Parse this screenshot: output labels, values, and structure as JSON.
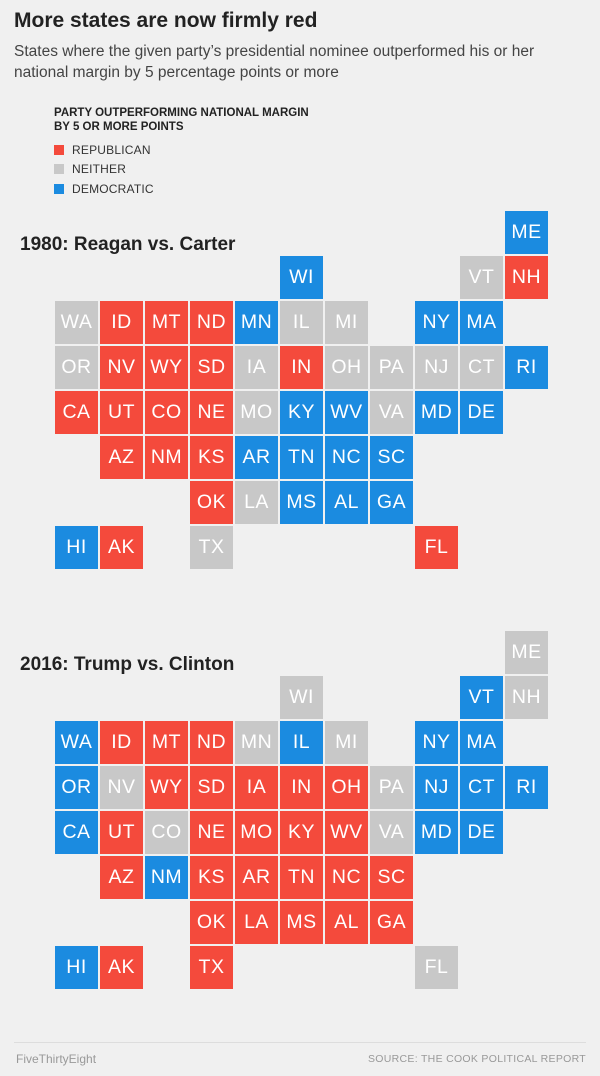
{
  "title": "More states are now firmly red",
  "subtitle": "States where the given party’s presidential nominee outperformed his or her national margin by 5 percentage points or more",
  "legend": {
    "title": "PARTY OUTPERFORMING NATIONAL MARGIN BY 5 OR MORE POINTS",
    "items": [
      {
        "label": "REPUBLICAN",
        "color": "#f44a3c"
      },
      {
        "label": "NEITHER",
        "color": "#c8c8c8"
      },
      {
        "label": "DEMOCRATIC",
        "color": "#1b8be0"
      }
    ]
  },
  "colors": {
    "R": "#f44a3c",
    "N": "#c8c8c8",
    "D": "#1b8be0"
  },
  "footer": {
    "brand": "FiveThirtyEight",
    "source": "SOURCE: THE COOK POLITICAL REPORT"
  },
  "chart_data": [
    {
      "type": "tile-map",
      "title": "1980: Reagan vs. Carter",
      "states": [
        {
          "state": "ME",
          "col": 10,
          "row": 0,
          "party": "D"
        },
        {
          "state": "WI",
          "col": 5,
          "row": 1,
          "party": "D"
        },
        {
          "state": "VT",
          "col": 9,
          "row": 1,
          "party": "N"
        },
        {
          "state": "NH",
          "col": 10,
          "row": 1,
          "party": "R"
        },
        {
          "state": "WA",
          "col": 0,
          "row": 2,
          "party": "N"
        },
        {
          "state": "ID",
          "col": 1,
          "row": 2,
          "party": "R"
        },
        {
          "state": "MT",
          "col": 2,
          "row": 2,
          "party": "R"
        },
        {
          "state": "ND",
          "col": 3,
          "row": 2,
          "party": "R"
        },
        {
          "state": "MN",
          "col": 4,
          "row": 2,
          "party": "D"
        },
        {
          "state": "IL",
          "col": 5,
          "row": 2,
          "party": "N"
        },
        {
          "state": "MI",
          "col": 6,
          "row": 2,
          "party": "N"
        },
        {
          "state": "NY",
          "col": 8,
          "row": 2,
          "party": "D"
        },
        {
          "state": "MA",
          "col": 9,
          "row": 2,
          "party": "D"
        },
        {
          "state": "OR",
          "col": 0,
          "row": 3,
          "party": "N"
        },
        {
          "state": "NV",
          "col": 1,
          "row": 3,
          "party": "R"
        },
        {
          "state": "WY",
          "col": 2,
          "row": 3,
          "party": "R"
        },
        {
          "state": "SD",
          "col": 3,
          "row": 3,
          "party": "R"
        },
        {
          "state": "IA",
          "col": 4,
          "row": 3,
          "party": "N"
        },
        {
          "state": "IN",
          "col": 5,
          "row": 3,
          "party": "R"
        },
        {
          "state": "OH",
          "col": 6,
          "row": 3,
          "party": "N"
        },
        {
          "state": "PA",
          "col": 7,
          "row": 3,
          "party": "N"
        },
        {
          "state": "NJ",
          "col": 8,
          "row": 3,
          "party": "N"
        },
        {
          "state": "CT",
          "col": 9,
          "row": 3,
          "party": "N"
        },
        {
          "state": "RI",
          "col": 10,
          "row": 3,
          "party": "D"
        },
        {
          "state": "CA",
          "col": 0,
          "row": 4,
          "party": "R"
        },
        {
          "state": "UT",
          "col": 1,
          "row": 4,
          "party": "R"
        },
        {
          "state": "CO",
          "col": 2,
          "row": 4,
          "party": "R"
        },
        {
          "state": "NE",
          "col": 3,
          "row": 4,
          "party": "R"
        },
        {
          "state": "MO",
          "col": 4,
          "row": 4,
          "party": "N"
        },
        {
          "state": "KY",
          "col": 5,
          "row": 4,
          "party": "D"
        },
        {
          "state": "WV",
          "col": 6,
          "row": 4,
          "party": "D"
        },
        {
          "state": "VA",
          "col": 7,
          "row": 4,
          "party": "N"
        },
        {
          "state": "MD",
          "col": 8,
          "row": 4,
          "party": "D"
        },
        {
          "state": "DE",
          "col": 9,
          "row": 4,
          "party": "D"
        },
        {
          "state": "AZ",
          "col": 1,
          "row": 5,
          "party": "R"
        },
        {
          "state": "NM",
          "col": 2,
          "row": 5,
          "party": "R"
        },
        {
          "state": "KS",
          "col": 3,
          "row": 5,
          "party": "R"
        },
        {
          "state": "AR",
          "col": 4,
          "row": 5,
          "party": "D"
        },
        {
          "state": "TN",
          "col": 5,
          "row": 5,
          "party": "D"
        },
        {
          "state": "NC",
          "col": 6,
          "row": 5,
          "party": "D"
        },
        {
          "state": "SC",
          "col": 7,
          "row": 5,
          "party": "D"
        },
        {
          "state": "OK",
          "col": 3,
          "row": 6,
          "party": "R"
        },
        {
          "state": "LA",
          "col": 4,
          "row": 6,
          "party": "N"
        },
        {
          "state": "MS",
          "col": 5,
          "row": 6,
          "party": "D"
        },
        {
          "state": "AL",
          "col": 6,
          "row": 6,
          "party": "D"
        },
        {
          "state": "GA",
          "col": 7,
          "row": 6,
          "party": "D"
        },
        {
          "state": "HI",
          "col": 0,
          "row": 7,
          "party": "D"
        },
        {
          "state": "AK",
          "col": 1,
          "row": 7,
          "party": "R"
        },
        {
          "state": "TX",
          "col": 3,
          "row": 7,
          "party": "N"
        },
        {
          "state": "FL",
          "col": 8,
          "row": 7,
          "party": "R"
        }
      ]
    },
    {
      "type": "tile-map",
      "title": "2016: Trump vs. Clinton",
      "states": [
        {
          "state": "ME",
          "col": 10,
          "row": 0,
          "party": "N"
        },
        {
          "state": "WI",
          "col": 5,
          "row": 1,
          "party": "N"
        },
        {
          "state": "VT",
          "col": 9,
          "row": 1,
          "party": "D"
        },
        {
          "state": "NH",
          "col": 10,
          "row": 1,
          "party": "N"
        },
        {
          "state": "WA",
          "col": 0,
          "row": 2,
          "party": "D"
        },
        {
          "state": "ID",
          "col": 1,
          "row": 2,
          "party": "R"
        },
        {
          "state": "MT",
          "col": 2,
          "row": 2,
          "party": "R"
        },
        {
          "state": "ND",
          "col": 3,
          "row": 2,
          "party": "R"
        },
        {
          "state": "MN",
          "col": 4,
          "row": 2,
          "party": "N"
        },
        {
          "state": "IL",
          "col": 5,
          "row": 2,
          "party": "D"
        },
        {
          "state": "MI",
          "col": 6,
          "row": 2,
          "party": "N"
        },
        {
          "state": "NY",
          "col": 8,
          "row": 2,
          "party": "D"
        },
        {
          "state": "MA",
          "col": 9,
          "row": 2,
          "party": "D"
        },
        {
          "state": "OR",
          "col": 0,
          "row": 3,
          "party": "D"
        },
        {
          "state": "NV",
          "col": 1,
          "row": 3,
          "party": "N"
        },
        {
          "state": "WY",
          "col": 2,
          "row": 3,
          "party": "R"
        },
        {
          "state": "SD",
          "col": 3,
          "row": 3,
          "party": "R"
        },
        {
          "state": "IA",
          "col": 4,
          "row": 3,
          "party": "R"
        },
        {
          "state": "IN",
          "col": 5,
          "row": 3,
          "party": "R"
        },
        {
          "state": "OH",
          "col": 6,
          "row": 3,
          "party": "R"
        },
        {
          "state": "PA",
          "col": 7,
          "row": 3,
          "party": "N"
        },
        {
          "state": "NJ",
          "col": 8,
          "row": 3,
          "party": "D"
        },
        {
          "state": "CT",
          "col": 9,
          "row": 3,
          "party": "D"
        },
        {
          "state": "RI",
          "col": 10,
          "row": 3,
          "party": "D"
        },
        {
          "state": "CA",
          "col": 0,
          "row": 4,
          "party": "D"
        },
        {
          "state": "UT",
          "col": 1,
          "row": 4,
          "party": "R"
        },
        {
          "state": "CO",
          "col": 2,
          "row": 4,
          "party": "N"
        },
        {
          "state": "NE",
          "col": 3,
          "row": 4,
          "party": "R"
        },
        {
          "state": "MO",
          "col": 4,
          "row": 4,
          "party": "R"
        },
        {
          "state": "KY",
          "col": 5,
          "row": 4,
          "party": "R"
        },
        {
          "state": "WV",
          "col": 6,
          "row": 4,
          "party": "R"
        },
        {
          "state": "VA",
          "col": 7,
          "row": 4,
          "party": "N"
        },
        {
          "state": "MD",
          "col": 8,
          "row": 4,
          "party": "D"
        },
        {
          "state": "DE",
          "col": 9,
          "row": 4,
          "party": "D"
        },
        {
          "state": "AZ",
          "col": 1,
          "row": 5,
          "party": "R"
        },
        {
          "state": "NM",
          "col": 2,
          "row": 5,
          "party": "D"
        },
        {
          "state": "KS",
          "col": 3,
          "row": 5,
          "party": "R"
        },
        {
          "state": "AR",
          "col": 4,
          "row": 5,
          "party": "R"
        },
        {
          "state": "TN",
          "col": 5,
          "row": 5,
          "party": "R"
        },
        {
          "state": "NC",
          "col": 6,
          "row": 5,
          "party": "R"
        },
        {
          "state": "SC",
          "col": 7,
          "row": 5,
          "party": "R"
        },
        {
          "state": "OK",
          "col": 3,
          "row": 6,
          "party": "R"
        },
        {
          "state": "LA",
          "col": 4,
          "row": 6,
          "party": "R"
        },
        {
          "state": "MS",
          "col": 5,
          "row": 6,
          "party": "R"
        },
        {
          "state": "AL",
          "col": 6,
          "row": 6,
          "party": "R"
        },
        {
          "state": "GA",
          "col": 7,
          "row": 6,
          "party": "R"
        },
        {
          "state": "HI",
          "col": 0,
          "row": 7,
          "party": "D"
        },
        {
          "state": "AK",
          "col": 1,
          "row": 7,
          "party": "R"
        },
        {
          "state": "TX",
          "col": 3,
          "row": 7,
          "party": "R"
        },
        {
          "state": "FL",
          "col": 8,
          "row": 7,
          "party": "N"
        }
      ]
    }
  ]
}
